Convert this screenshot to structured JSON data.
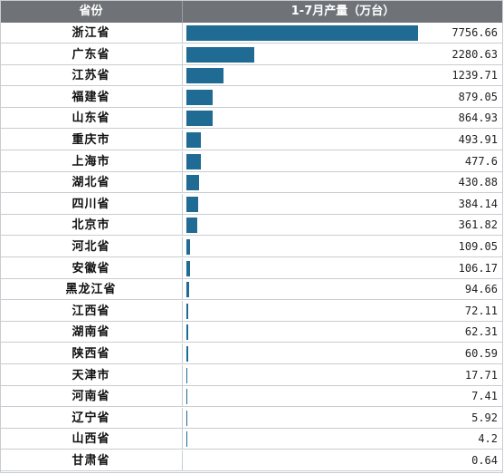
{
  "header": {
    "col_province": "省份",
    "col_output": "1-7月产量（万台）"
  },
  "chart_data": {
    "type": "bar",
    "categories": [
      "浙江省",
      "广东省",
      "江苏省",
      "福建省",
      "山东省",
      "重庆市",
      "上海市",
      "湖北省",
      "四川省",
      "北京市",
      "河北省",
      "安徽省",
      "黑龙江省",
      "江西省",
      "湖南省",
      "陕西省",
      "天津市",
      "河南省",
      "辽宁省",
      "山西省",
      "甘肃省"
    ],
    "values": [
      7756.66,
      2280.63,
      1239.71,
      879.05,
      864.93,
      493.91,
      477.6,
      430.88,
      384.14,
      361.82,
      109.05,
      106.17,
      94.66,
      72.11,
      62.31,
      60.59,
      17.71,
      7.41,
      5.92,
      4.2,
      0.64
    ],
    "value_labels": [
      "7756.66",
      "2280.63",
      "1239.71",
      "879.05",
      "864.93",
      "493.91",
      "477.6",
      "430.88",
      "384.14",
      "361.82",
      "109.05",
      "106.17",
      "94.66",
      "72.11",
      "62.31",
      "60.59",
      "17.71",
      "7.41",
      "5.92",
      "4.2",
      "0.64"
    ],
    "bar_color": "#1f6b94",
    "header_color": "#6f7378"
  }
}
